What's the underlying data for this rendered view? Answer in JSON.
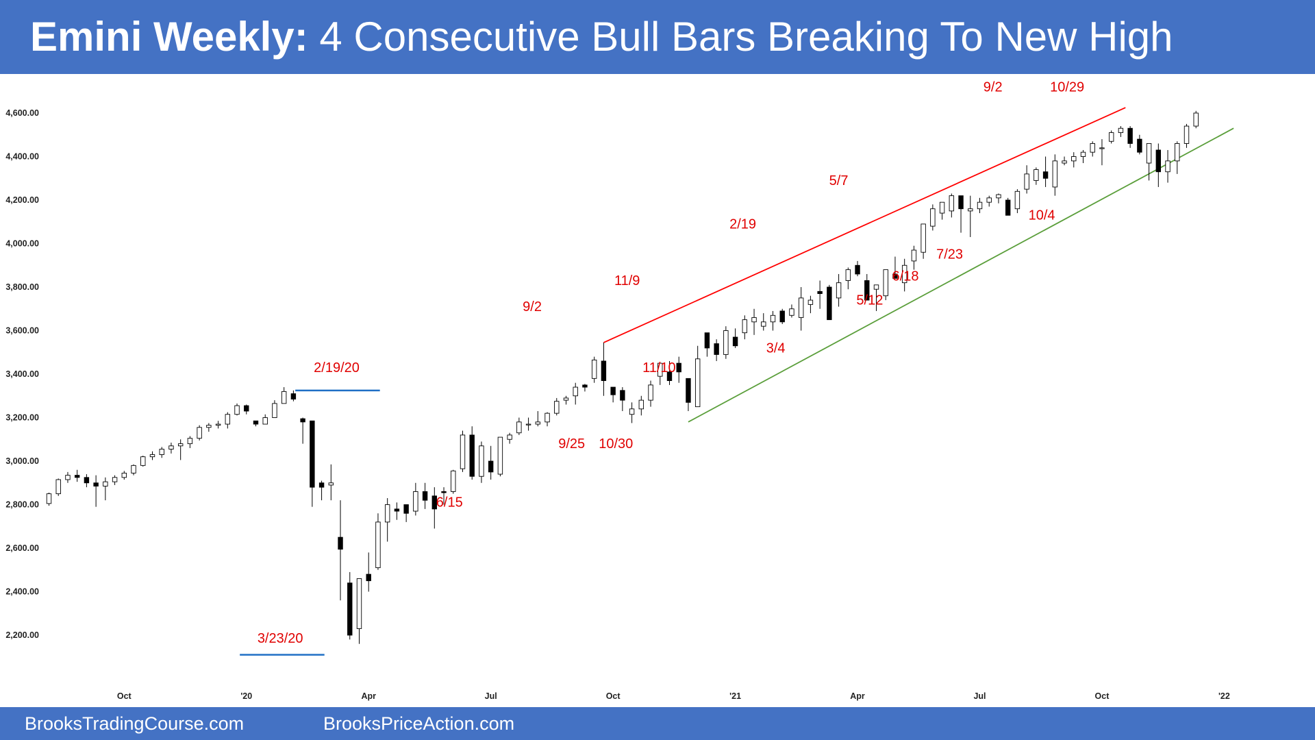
{
  "header": {
    "title_bold": "Emini Weekly:",
    "title_rest": "4 Consecutive Bull Bars Breaking To New High"
  },
  "footer": {
    "left": "BrooksTradingCourse.com",
    "right": "BrooksPriceAction.com"
  },
  "colors": {
    "banner": "#4472c4",
    "upper_line": "#ff0000",
    "lower_line": "#5a9e3a",
    "level_line": "#1f6fc5",
    "annotation": "#e00000"
  },
  "chart_data": {
    "type": "candlestick",
    "title": "Emini Weekly",
    "ylim": [
      2100,
      4700
    ],
    "y_ticks": [
      2200,
      2400,
      2600,
      2800,
      3000,
      3200,
      3400,
      3600,
      3800,
      4000,
      4200,
      4400,
      4600
    ],
    "y_tick_labels": [
      "2,200.00",
      "2,400.00",
      "2,600.00",
      "2,800.00",
      "3,000.00",
      "3,200.00",
      "3,400.00",
      "3,600.00",
      "3,800.00",
      "4,000.00",
      "4,200.00",
      "4,400.00",
      "4,600.00"
    ],
    "x_ticks": [
      {
        "label": "Oct",
        "week": 8
      },
      {
        "label": "'20",
        "week": 21
      },
      {
        "label": "Apr",
        "week": 34
      },
      {
        "label": "Jul",
        "week": 47
      },
      {
        "label": "Oct",
        "week": 60
      },
      {
        "label": "'21",
        "week": 73
      },
      {
        "label": "Apr",
        "week": 86
      },
      {
        "label": "Jul",
        "week": 99
      },
      {
        "label": "Oct",
        "week": 112
      },
      {
        "label": "'22",
        "week": 125
      }
    ],
    "week_range": [
      -0.4,
      126.5
    ],
    "candles": [
      [
        2805,
        2855,
        2795,
        2850
      ],
      [
        2850,
        2920,
        2840,
        2915
      ],
      [
        2915,
        2950,
        2900,
        2935
      ],
      [
        2935,
        2960,
        2905,
        2925
      ],
      [
        2925,
        2940,
        2880,
        2900
      ],
      [
        2900,
        2935,
        2790,
        2885
      ],
      [
        2885,
        2925,
        2820,
        2905
      ],
      [
        2905,
        2935,
        2890,
        2925
      ],
      [
        2925,
        2955,
        2915,
        2945
      ],
      [
        2945,
        2985,
        2935,
        2980
      ],
      [
        2980,
        3025,
        2975,
        3020
      ],
      [
        3020,
        3045,
        3005,
        3030
      ],
      [
        3030,
        3065,
        3015,
        3055
      ],
      [
        3055,
        3085,
        3035,
        3070
      ],
      [
        3070,
        3100,
        3005,
        3080
      ],
      [
        3080,
        3115,
        3060,
        3105
      ],
      [
        3105,
        3165,
        3095,
        3155
      ],
      [
        3155,
        3175,
        3135,
        3165
      ],
      [
        3165,
        3185,
        3150,
        3170
      ],
      [
        3170,
        3225,
        3150,
        3215
      ],
      [
        3215,
        3265,
        3210,
        3255
      ],
      [
        3255,
        3260,
        3215,
        3230
      ],
      [
        3185,
        3185,
        3160,
        3170
      ],
      [
        3170,
        3215,
        3170,
        3200
      ],
      [
        3200,
        3280,
        3200,
        3265
      ],
      [
        3265,
        3340,
        3265,
        3320
      ],
      [
        3310,
        3325,
        3275,
        3285
      ],
      [
        3195,
        3200,
        3080,
        3180
      ],
      [
        3185,
        3185,
        2790,
        2880
      ],
      [
        2900,
        2910,
        2820,
        2880
      ],
      [
        2890,
        2985,
        2820,
        2900
      ],
      [
        2650,
        2820,
        2360,
        2595
      ],
      [
        2440,
        2490,
        2180,
        2200
      ],
      [
        2230,
        2460,
        2160,
        2460
      ],
      [
        2480,
        2580,
        2400,
        2450
      ],
      [
        2510,
        2760,
        2500,
        2720
      ],
      [
        2720,
        2830,
        2630,
        2800
      ],
      [
        2780,
        2810,
        2730,
        2770
      ],
      [
        2800,
        2800,
        2720,
        2760
      ],
      [
        2770,
        2900,
        2750,
        2860
      ],
      [
        2860,
        2900,
        2780,
        2820
      ],
      [
        2840,
        2880,
        2690,
        2780
      ],
      [
        2860,
        2880,
        2800,
        2855
      ],
      [
        2860,
        2960,
        2850,
        2955
      ],
      [
        2965,
        3140,
        2950,
        3120
      ],
      [
        3120,
        3160,
        2915,
        2930
      ],
      [
        2930,
        3090,
        2900,
        3070
      ],
      [
        3000,
        3070,
        2915,
        2950
      ],
      [
        2940,
        3110,
        2930,
        3110
      ],
      [
        3100,
        3130,
        3080,
        3120
      ],
      [
        3130,
        3200,
        3120,
        3180
      ],
      [
        3170,
        3200,
        3140,
        3170
      ],
      [
        3170,
        3230,
        3160,
        3180
      ],
      [
        3180,
        3225,
        3160,
        3220
      ],
      [
        3220,
        3290,
        3210,
        3275
      ],
      [
        3280,
        3300,
        3260,
        3290
      ],
      [
        3300,
        3360,
        3260,
        3340
      ],
      [
        3350,
        3355,
        3320,
        3340
      ],
      [
        3380,
        3480,
        3360,
        3465
      ],
      [
        3460,
        3545,
        3300,
        3370
      ],
      [
        3340,
        3340,
        3270,
        3305
      ],
      [
        3325,
        3340,
        3230,
        3280
      ],
      [
        3215,
        3270,
        3175,
        3240
      ],
      [
        3240,
        3300,
        3210,
        3280
      ],
      [
        3280,
        3370,
        3250,
        3350
      ],
      [
        3390,
        3450,
        3350,
        3450
      ],
      [
        3410,
        3460,
        3350,
        3370
      ],
      [
        3450,
        3480,
        3360,
        3410
      ],
      [
        3380,
        3380,
        3230,
        3270
      ],
      [
        3250,
        3530,
        3260,
        3470
      ],
      [
        3590,
        3590,
        3480,
        3520
      ],
      [
        3540,
        3560,
        3460,
        3490
      ],
      [
        3490,
        3620,
        3470,
        3600
      ],
      [
        3570,
        3610,
        3520,
        3530
      ],
      [
        3590,
        3670,
        3560,
        3650
      ],
      [
        3640,
        3700,
        3580,
        3660
      ],
      [
        3620,
        3680,
        3600,
        3640
      ],
      [
        3640,
        3690,
        3600,
        3670
      ],
      [
        3690,
        3700,
        3630,
        3640
      ],
      [
        3670,
        3720,
        3660,
        3700
      ],
      [
        3660,
        3800,
        3600,
        3750
      ],
      [
        3720,
        3760,
        3680,
        3740
      ],
      [
        3780,
        3830,
        3700,
        3770
      ],
      [
        3800,
        3810,
        3650,
        3650
      ],
      [
        3750,
        3860,
        3710,
        3820
      ],
      [
        3830,
        3890,
        3790,
        3880
      ],
      [
        3900,
        3920,
        3850,
        3860
      ],
      [
        3830,
        3860,
        3740,
        3740
      ],
      [
        3790,
        3800,
        3690,
        3810
      ],
      [
        3760,
        3860,
        3740,
        3880
      ],
      [
        3860,
        3940,
        3840,
        3840
      ],
      [
        3820,
        3930,
        3780,
        3900
      ],
      [
        3920,
        3990,
        3880,
        3970
      ],
      [
        3960,
        4080,
        3930,
        4090
      ],
      [
        4080,
        4180,
        4060,
        4160
      ],
      [
        4140,
        4190,
        4110,
        4190
      ],
      [
        4150,
        4230,
        4120,
        4220
      ],
      [
        4220,
        4220,
        4050,
        4160
      ],
      [
        4150,
        4220,
        4030,
        4160
      ],
      [
        4160,
        4210,
        4140,
        4190
      ],
      [
        4190,
        4220,
        4170,
        4210
      ],
      [
        4210,
        4230,
        4185,
        4225
      ],
      [
        4200,
        4210,
        4140,
        4130
      ],
      [
        4160,
        4250,
        4140,
        4240
      ],
      [
        4250,
        4360,
        4230,
        4320
      ],
      [
        4290,
        4350,
        4270,
        4340
      ],
      [
        4330,
        4400,
        4260,
        4300
      ],
      [
        4260,
        4410,
        4220,
        4380
      ],
      [
        4370,
        4400,
        4360,
        4380
      ],
      [
        4380,
        4420,
        4350,
        4400
      ],
      [
        4400,
        4430,
        4370,
        4420
      ],
      [
        4420,
        4470,
        4400,
        4460
      ],
      [
        4440,
        4480,
        4360,
        4440
      ],
      [
        4470,
        4520,
        4460,
        4510
      ],
      [
        4510,
        4540,
        4490,
        4530
      ],
      [
        4530,
        4540,
        4440,
        4460
      ],
      [
        4480,
        4500,
        4410,
        4420
      ],
      [
        4370,
        4460,
        4290,
        4460
      ],
      [
        4430,
        4460,
        4260,
        4330
      ],
      [
        4330,
        4430,
        4280,
        4380
      ],
      [
        4380,
        4470,
        4320,
        4460
      ],
      [
        4460,
        4550,
        4440,
        4540
      ],
      [
        4540,
        4610,
        4530,
        4600
      ]
    ],
    "trend_lines": [
      {
        "name": "upper",
        "from": [
          59,
          3545
        ],
        "to": [
          114.5,
          4625
        ]
      },
      {
        "name": "lower",
        "from": [
          68,
          3180
        ],
        "to": [
          126,
          4530
        ]
      }
    ],
    "levels": [
      {
        "name": "2/19/20 high",
        "price": 3325,
        "from_week": 26.2,
        "to_week": 35.2
      },
      {
        "name": "3/23/20 low",
        "price": 2110,
        "from_week": 20.3,
        "to_week": 29.3
      }
    ],
    "annotations": [
      {
        "text": "2/19/20",
        "week": 30.6,
        "price": 3410
      },
      {
        "text": "3/23/20",
        "week": 24.6,
        "price": 2165
      },
      {
        "text": "6/15",
        "week": 42.6,
        "price": 2790
      },
      {
        "text": "9/2",
        "week": 51.4,
        "price": 3690
      },
      {
        "text": "9/25",
        "week": 55.6,
        "price": 3060
      },
      {
        "text": "10/30",
        "week": 60.3,
        "price": 3060
      },
      {
        "text": "11/9",
        "week": 61.5,
        "price": 3810
      },
      {
        "text": "11/10",
        "week": 64.9,
        "price": 3410
      },
      {
        "text": "2/19",
        "week": 73.8,
        "price": 4070
      },
      {
        "text": "3/4",
        "week": 77.3,
        "price": 3500
      },
      {
        "text": "5/7",
        "week": 84.0,
        "price": 4270
      },
      {
        "text": "5/12",
        "week": 87.3,
        "price": 3720
      },
      {
        "text": "6/18",
        "week": 91.1,
        "price": 3830
      },
      {
        "text": "7/23",
        "week": 95.8,
        "price": 3930
      },
      {
        "text": "9/2",
        "week": 100.4,
        "price": 4700
      },
      {
        "text": "10/29",
        "week": 108.3,
        "price": 4700
      },
      {
        "text": "10/4",
        "week": 105.6,
        "price": 4110
      }
    ]
  }
}
